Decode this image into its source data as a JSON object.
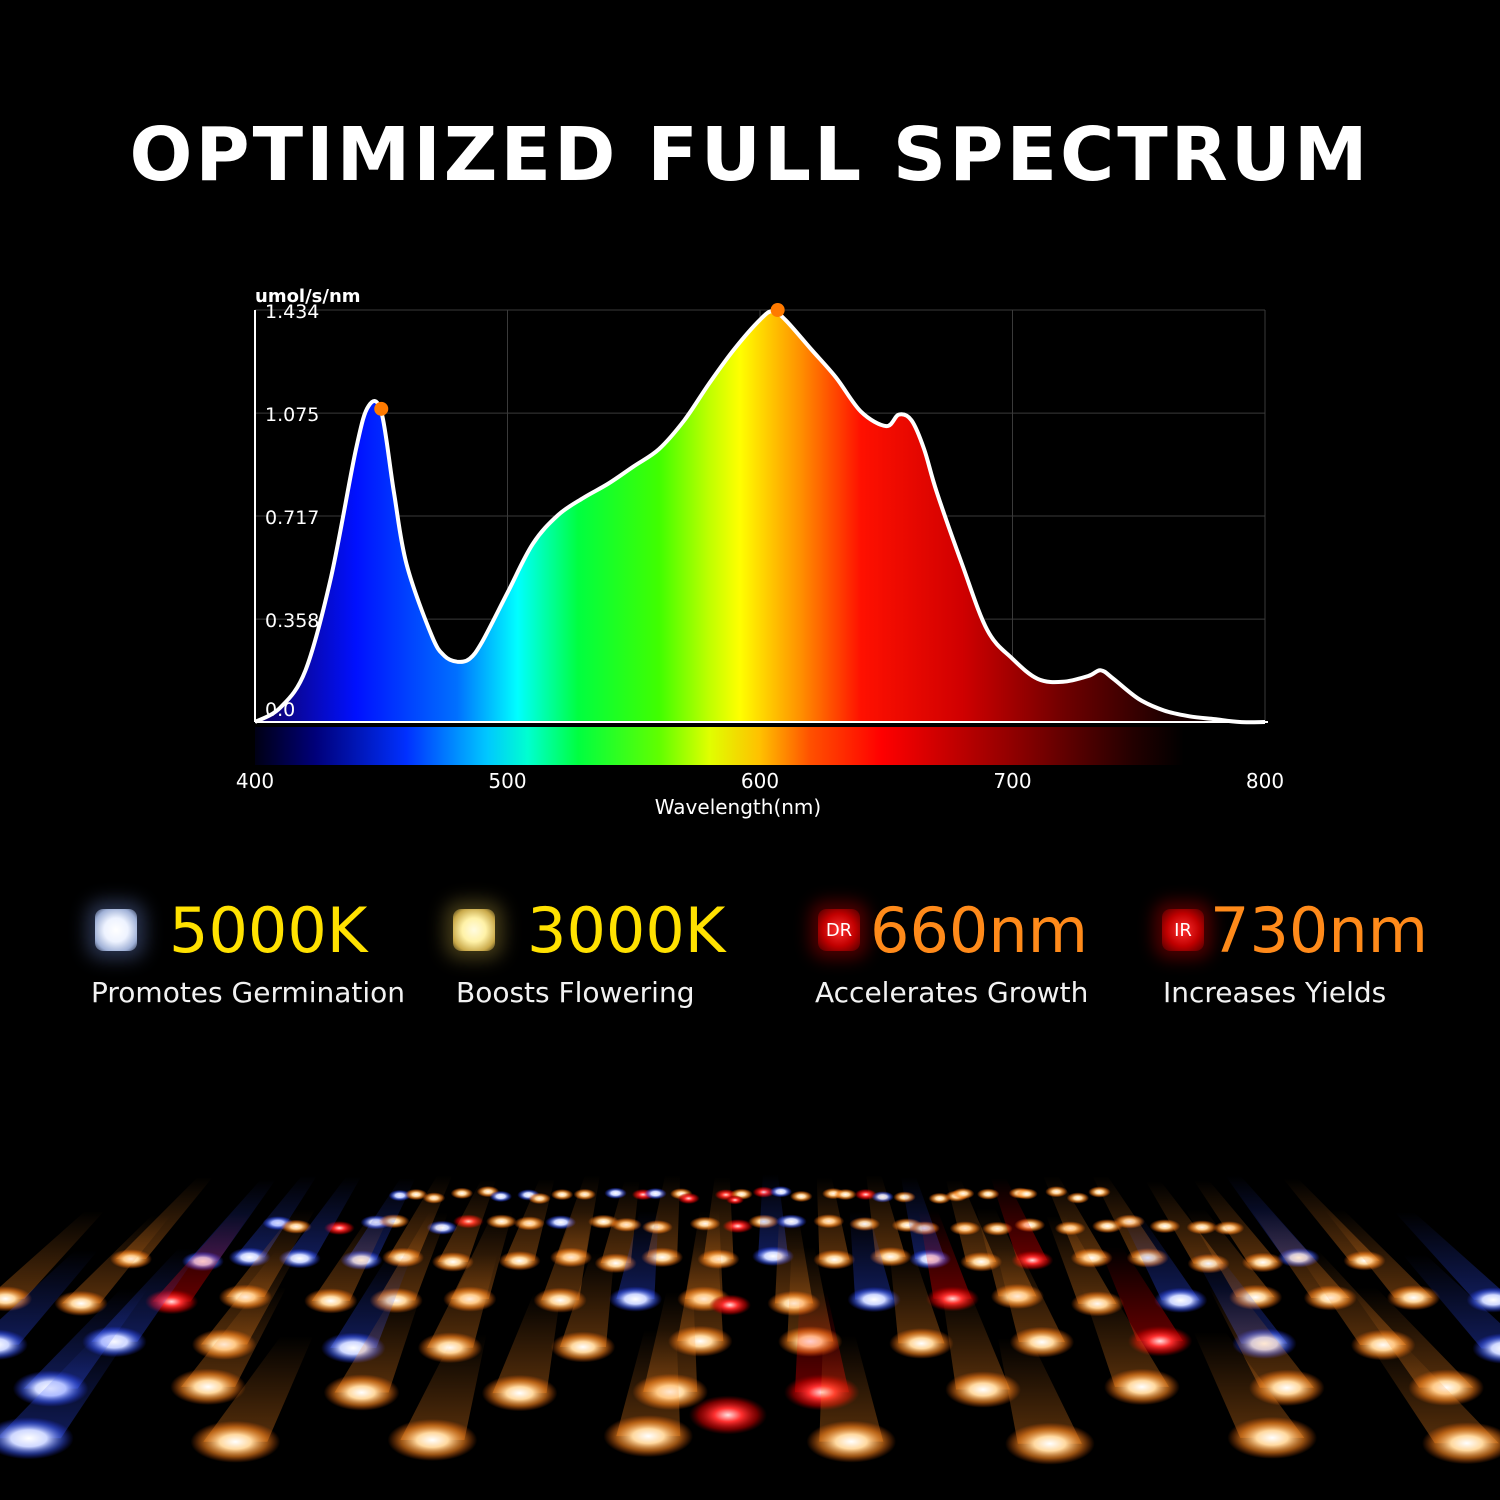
{
  "title": "OPTIMIZED FULL SPECTRUM",
  "chart_data": {
    "type": "area",
    "title": "",
    "xlabel": "Wavelength(nm)",
    "ylabel": "umol/s/nm",
    "xlim": [
      400,
      800
    ],
    "ylim": [
      0,
      1.434
    ],
    "x_ticks": [
      "400",
      "500",
      "600",
      "700",
      "800"
    ],
    "y_ticks": [
      "0.0",
      "0.358",
      "0.717",
      "1.075",
      "1.434"
    ],
    "grid": true,
    "series": [
      {
        "x": [
          400,
          410,
          420,
          430,
          440,
          445,
          450,
          455,
          460,
          470,
          475,
          480,
          485,
          490,
          500,
          510,
          520,
          530,
          540,
          550,
          560,
          570,
          580,
          590,
          600,
          605,
          610,
          620,
          630,
          640,
          650,
          655,
          660,
          665,
          670,
          680,
          690,
          700,
          710,
          720,
          730,
          735,
          740,
          750,
          760,
          770,
          780,
          790,
          800
        ],
        "y": [
          0.0,
          0.05,
          0.18,
          0.5,
          0.95,
          1.1,
          1.08,
          0.8,
          0.55,
          0.3,
          0.23,
          0.21,
          0.22,
          0.28,
          0.45,
          0.62,
          0.72,
          0.78,
          0.83,
          0.89,
          0.95,
          1.05,
          1.18,
          1.3,
          1.4,
          1.43,
          1.4,
          1.3,
          1.2,
          1.08,
          1.03,
          1.07,
          1.05,
          0.95,
          0.8,
          0.55,
          0.32,
          0.22,
          0.15,
          0.14,
          0.16,
          0.18,
          0.15,
          0.08,
          0.04,
          0.02,
          0.01,
          0.0,
          0.0
        ]
      }
    ],
    "markers": [
      {
        "x": 450,
        "y": 1.09
      },
      {
        "x": 607,
        "y": 1.434
      }
    ]
  },
  "features": [
    {
      "chip_label": "",
      "value": "5000K",
      "description": "Promotes Germination",
      "color": "#ffe100"
    },
    {
      "chip_label": "",
      "value": "3000K",
      "description": "Boosts Flowering",
      "color": "#ffe100"
    },
    {
      "chip_label": "DR",
      "value": "660nm",
      "description": "Accelerates Growth",
      "color": "#ff8a1a"
    },
    {
      "chip_label": "IR",
      "value": "730nm",
      "description": "Increases Yields",
      "color": "#ff8a1a"
    }
  ],
  "colors": {
    "background": "#000000",
    "curve": "#ffffff",
    "marker": "#ff7a00"
  }
}
